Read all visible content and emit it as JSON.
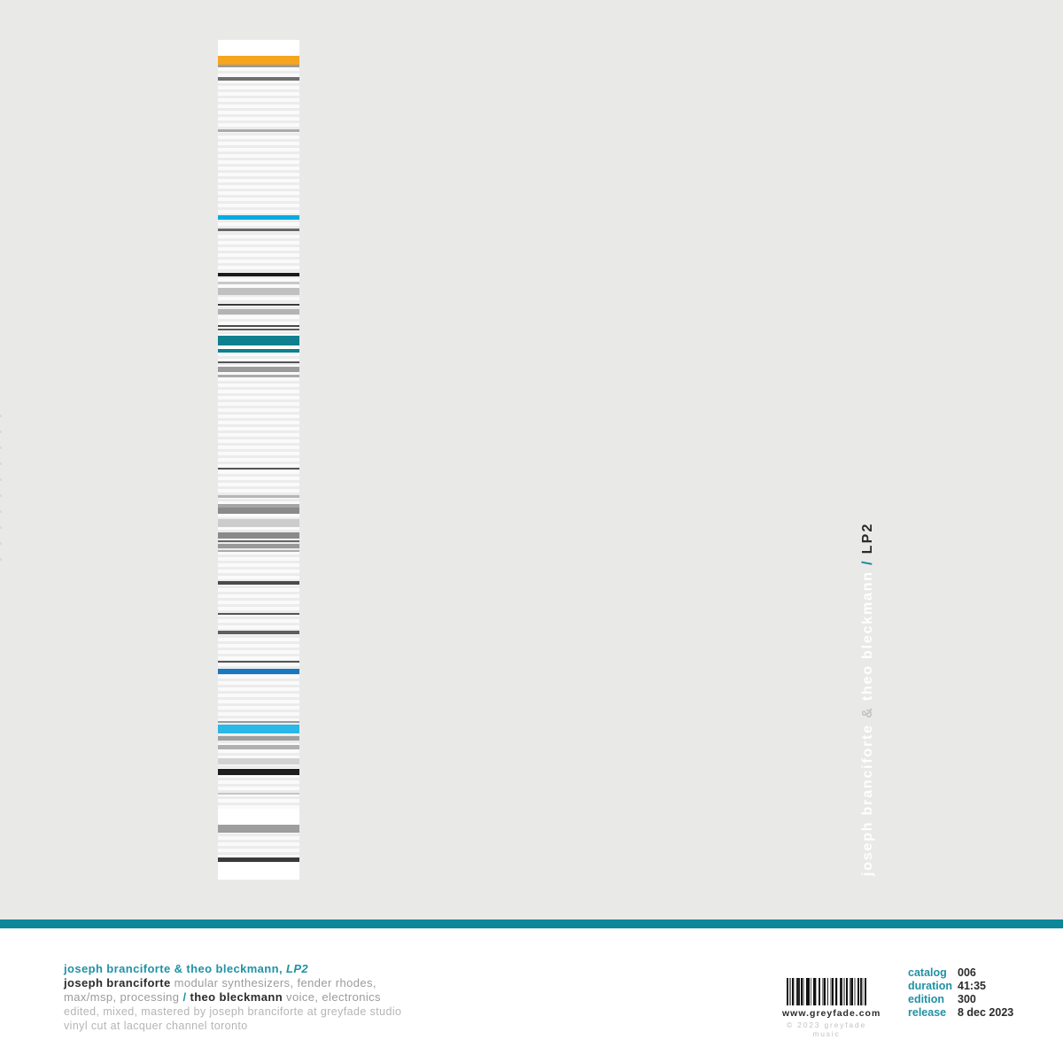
{
  "colors": {
    "bg": "#e9e9e8",
    "stripe": "#0f879a",
    "teal-text": "#2191a5",
    "dark": "#2b2b2b",
    "gray": "#9b9b9b",
    "lightgray": "#b5b5b5",
    "amp": "#c4c4c4",
    "orange": "#f6a51f",
    "cyan": "#29b8e8",
    "blue": "#1878c0"
  },
  "strip": {
    "bars": [
      [
        0,
        18,
        "#ffffff"
      ],
      [
        18,
        10,
        "#f6a51f"
      ],
      [
        28,
        3,
        "#9c9c9c"
      ],
      [
        42,
        4,
        "#6f6f6f"
      ],
      [
        101,
        3,
        "#ababab"
      ],
      [
        198,
        5,
        "#00ade2"
      ],
      [
        213,
        3,
        "#686868"
      ],
      [
        263,
        4,
        "#1b1b1b"
      ],
      [
        273,
        3,
        "#c8c8c8"
      ],
      [
        280,
        8,
        "#c0c0c0"
      ],
      [
        298,
        2,
        "#3a3a3a"
      ],
      [
        304,
        6,
        "#b3b3b3"
      ],
      [
        322,
        2,
        "#4a4a4a"
      ],
      [
        326,
        2,
        "#5a5a5a"
      ],
      [
        334,
        11,
        "#0e808f"
      ],
      [
        345,
        4,
        "#ffffff"
      ],
      [
        349,
        4,
        "#0e808f"
      ],
      [
        363,
        2,
        "#555555"
      ],
      [
        369,
        6,
        "#9b9b9b"
      ],
      [
        378,
        3,
        "#ababab"
      ],
      [
        483,
        2,
        "#555555"
      ],
      [
        514,
        3,
        "#b5b5b5"
      ],
      [
        524,
        4,
        "#a5a5a5"
      ],
      [
        528,
        7,
        "#8a8a8a"
      ],
      [
        541,
        9,
        "#cccccc"
      ],
      [
        556,
        7,
        "#8a8a8a"
      ],
      [
        565,
        2,
        "#666666"
      ],
      [
        569,
        5,
        "#999999"
      ],
      [
        576,
        2,
        "#ababab"
      ],
      [
        611,
        4,
        "#4a4a4a"
      ],
      [
        647,
        2,
        "#555555"
      ],
      [
        667,
        4,
        "#5e5e5e"
      ],
      [
        701,
        2,
        "#555555"
      ],
      [
        710,
        6,
        "#1878c0"
      ],
      [
        769,
        2,
        "#999999"
      ],
      [
        773,
        10,
        "#29b8e8"
      ],
      [
        786,
        5,
        "#a0a0a0"
      ],
      [
        796,
        5,
        "#b0b0b0"
      ],
      [
        811,
        7,
        "#d2d2d2"
      ],
      [
        823,
        7,
        "#1e1e1e"
      ],
      [
        850,
        2,
        "#c5c5c5"
      ],
      [
        868,
        18,
        "#ffffff"
      ],
      [
        886,
        9,
        "#9e9e9e"
      ],
      [
        923,
        5,
        "#3a3a3a"
      ],
      [
        928,
        20,
        "#ffffff"
      ]
    ]
  },
  "vertical_title": {
    "artist1": "joseph branciforte ",
    "amp": "& ",
    "artist2": "theo bleckmann ",
    "separator": "/ ",
    "album": "LP2"
  },
  "credits": {
    "lines": [
      [
        {
          "t": "joseph branciforte & theo bleckmann, ",
          "s": "tb"
        },
        {
          "t": "LP2",
          "s": "tbi"
        }
      ],
      [
        {
          "t": "joseph branciforte ",
          "s": "db"
        },
        {
          "t": "modular synthesizers, fender rhodes,",
          "s": "g"
        }
      ],
      [
        {
          "t": "max/msp, processing ",
          "s": "g"
        },
        {
          "t": "/ ",
          "s": "tb"
        },
        {
          "t": "theo bleckmann ",
          "s": "db"
        },
        {
          "t": "voice, electronics",
          "s": "g"
        }
      ],
      [
        {
          "t": "edited, mixed, mastered by joseph branciforte at greyfade studio",
          "s": "lg"
        }
      ],
      [
        {
          "t": "vinyl cut at lacquer channel toronto",
          "s": "lg"
        }
      ]
    ]
  },
  "barcode": {
    "url": "www.greyfade.com",
    "copyright": "© 2023 greyfade music"
  },
  "catalog": {
    "rows": [
      {
        "label": "catalog",
        "value": "006"
      },
      {
        "label": "duration",
        "value": "41:35"
      },
      {
        "label": "edition",
        "value": "300"
      },
      {
        "label": "release",
        "value": "8 dec 2023"
      }
    ]
  }
}
